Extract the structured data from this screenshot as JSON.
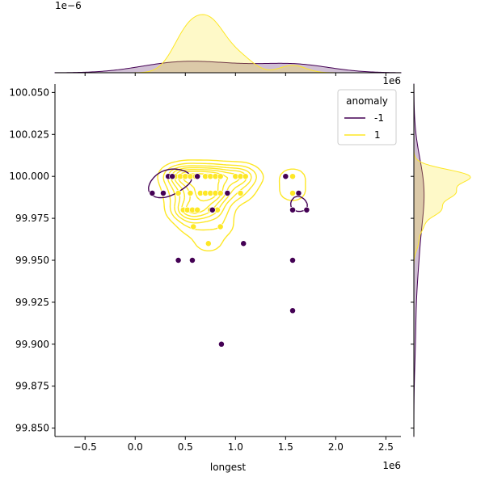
{
  "chart_data": {
    "type": "scatter",
    "title": "",
    "xlabel": "longest",
    "ylabel": "",
    "x_offset_label": "1e6",
    "y_offset_label": "1e6",
    "top_marginal_offset_label": "1e−6",
    "xlim": [
      -0.8,
      2.65
    ],
    "ylim": [
      99.845,
      100.055
    ],
    "x_ticks": [
      -0.5,
      0.0,
      0.5,
      1.0,
      1.5,
      2.0,
      2.5
    ],
    "x_tick_labels": [
      "−0.5",
      "0.0",
      "0.5",
      "1.0",
      "1.5",
      "2.0",
      "2.5"
    ],
    "y_ticks": [
      99.85,
      99.875,
      99.9,
      99.925,
      99.95,
      99.975,
      100.0,
      100.025,
      100.05
    ],
    "y_tick_labels": [
      "99.850",
      "99.875",
      "99.900",
      "99.925",
      "99.950",
      "99.975",
      "100.000",
      "100.025",
      "100.050"
    ],
    "grid": false,
    "legend": {
      "title": "anomaly",
      "placement": "top-right"
    },
    "colors": {
      "anomaly_neg": "#440154",
      "normal": "#fde725"
    },
    "series": [
      {
        "name": "-1",
        "color": "#440154",
        "points": [
          [
            0.17,
            99.99
          ],
          [
            0.28,
            99.99
          ],
          [
            0.33,
            100.0
          ],
          [
            0.37,
            100.0
          ],
          [
            0.62,
            100.0
          ],
          [
            0.43,
            99.95
          ],
          [
            0.57,
            99.95
          ],
          [
            0.77,
            99.98
          ],
          [
            0.92,
            99.99
          ],
          [
            1.08,
            99.96
          ],
          [
            0.86,
            99.9
          ],
          [
            1.5,
            100.0
          ],
          [
            1.57,
            99.98
          ],
          [
            1.63,
            99.99
          ],
          [
            1.71,
            99.98
          ],
          [
            1.57,
            99.95
          ],
          [
            1.57,
            99.92
          ]
        ]
      },
      {
        "name": "1",
        "color": "#fde725",
        "points": [
          [
            0.4,
            100.0
          ],
          [
            0.45,
            100.0
          ],
          [
            0.5,
            100.0
          ],
          [
            0.55,
            100.0
          ],
          [
            0.6,
            100.0
          ],
          [
            0.7,
            100.0
          ],
          [
            0.75,
            100.0
          ],
          [
            0.8,
            100.0
          ],
          [
            0.85,
            100.0
          ],
          [
            1.0,
            100.0
          ],
          [
            1.05,
            100.0
          ],
          [
            1.1,
            100.0
          ],
          [
            1.57,
            100.0
          ],
          [
            0.43,
            99.99
          ],
          [
            0.55,
            99.99
          ],
          [
            0.65,
            99.99
          ],
          [
            0.7,
            99.99
          ],
          [
            0.75,
            99.99
          ],
          [
            0.8,
            99.99
          ],
          [
            0.85,
            99.99
          ],
          [
            1.05,
            99.99
          ],
          [
            1.57,
            99.99
          ],
          [
            0.48,
            99.98
          ],
          [
            0.52,
            99.98
          ],
          [
            0.57,
            99.98
          ],
          [
            0.62,
            99.98
          ],
          [
            0.75,
            99.98
          ],
          [
            0.82,
            99.98
          ],
          [
            0.58,
            99.97
          ],
          [
            0.85,
            99.97
          ],
          [
            0.73,
            99.96
          ]
        ]
      }
    ]
  }
}
